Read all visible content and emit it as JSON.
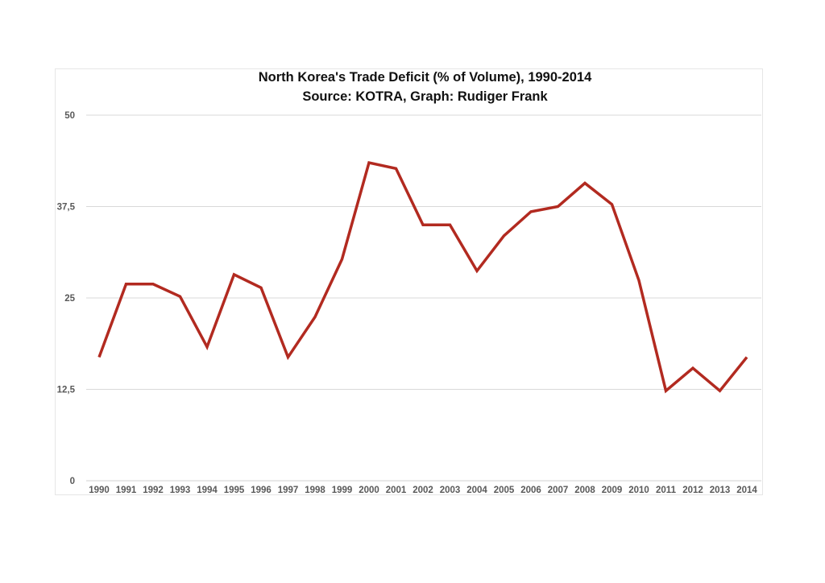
{
  "chart_data": {
    "type": "line",
    "title": "North Korea's Trade Deficit (% of Volume), 1990-2014",
    "subtitle": "Source: KOTRA, Graph: Rudiger Frank",
    "xlabel": "",
    "ylabel": "",
    "ylim": [
      0,
      50
    ],
    "yticks": [
      "0",
      "12,5",
      "25",
      "37,5",
      "50"
    ],
    "ytick_values": [
      0,
      12.5,
      25,
      37.5,
      50
    ],
    "grid": true,
    "line_color": "#b22a20",
    "categories": [
      "1990",
      "1991",
      "1992",
      "1993",
      "1994",
      "1995",
      "1996",
      "1997",
      "1998",
      "1999",
      "2000",
      "2001",
      "2002",
      "2003",
      "2004",
      "2005",
      "2006",
      "2007",
      "2008",
      "2009",
      "2010",
      "2011",
      "2012",
      "2013",
      "2014"
    ],
    "values": [
      16.9,
      26.9,
      26.9,
      25.2,
      18.3,
      28.2,
      26.4,
      16.9,
      22.4,
      30.3,
      43.5,
      42.7,
      35.0,
      35.0,
      28.7,
      33.5,
      36.8,
      37.5,
      40.7,
      37.8,
      27.4,
      12.3,
      15.4,
      12.3,
      16.9
    ]
  }
}
